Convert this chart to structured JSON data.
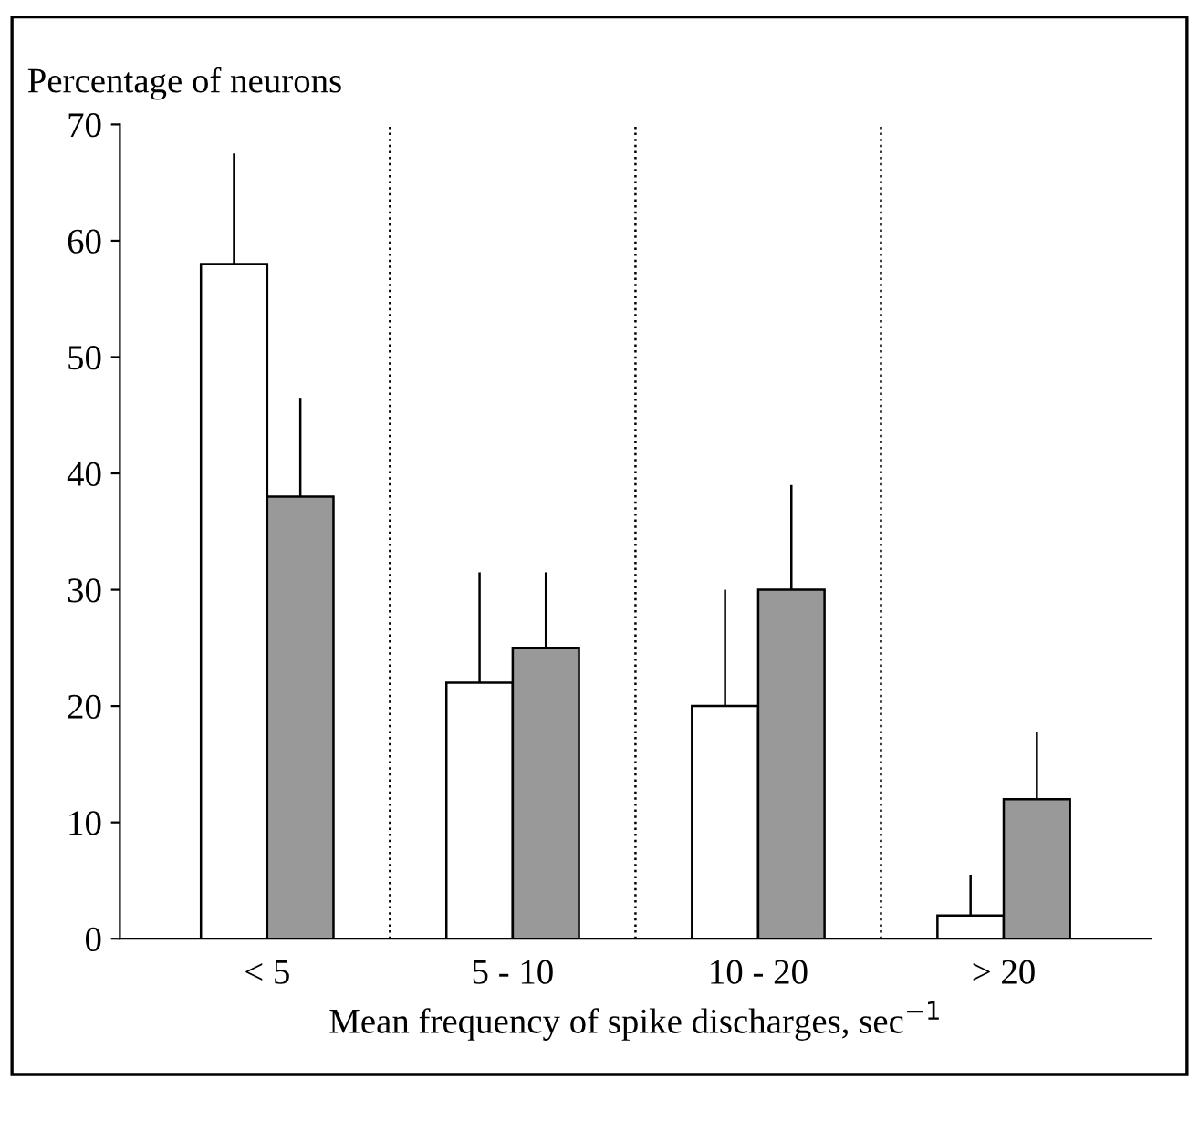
{
  "chart_data": {
    "type": "bar",
    "ylabel": "Percentage of neurons",
    "xlabel": "Mean frequency of spike discharges, sec$^{−1}$",
    "categories": [
      "< 5",
      "5 - 10",
      "10 - 20",
      "> 20"
    ],
    "series": [
      {
        "color": "#ffffff",
        "values": [
          58,
          22,
          20,
          2
        ],
        "errors": [
          [
            58,
            67.5
          ],
          [
            22,
            31.5
          ],
          [
            20,
            30
          ],
          [
            2,
            5.5
          ]
        ]
      },
      {
        "color": "#999999",
        "values": [
          38,
          25,
          30,
          12
        ],
        "errors": [
          [
            38,
            46.5
          ],
          [
            25,
            31.5
          ],
          [
            30,
            39
          ],
          [
            12,
            17.8
          ]
        ]
      }
    ],
    "ylim": [
      0,
      70
    ],
    "yticks": [
      0,
      10,
      20,
      30,
      40,
      50,
      60,
      70
    ],
    "grid": false,
    "legend": false
  }
}
